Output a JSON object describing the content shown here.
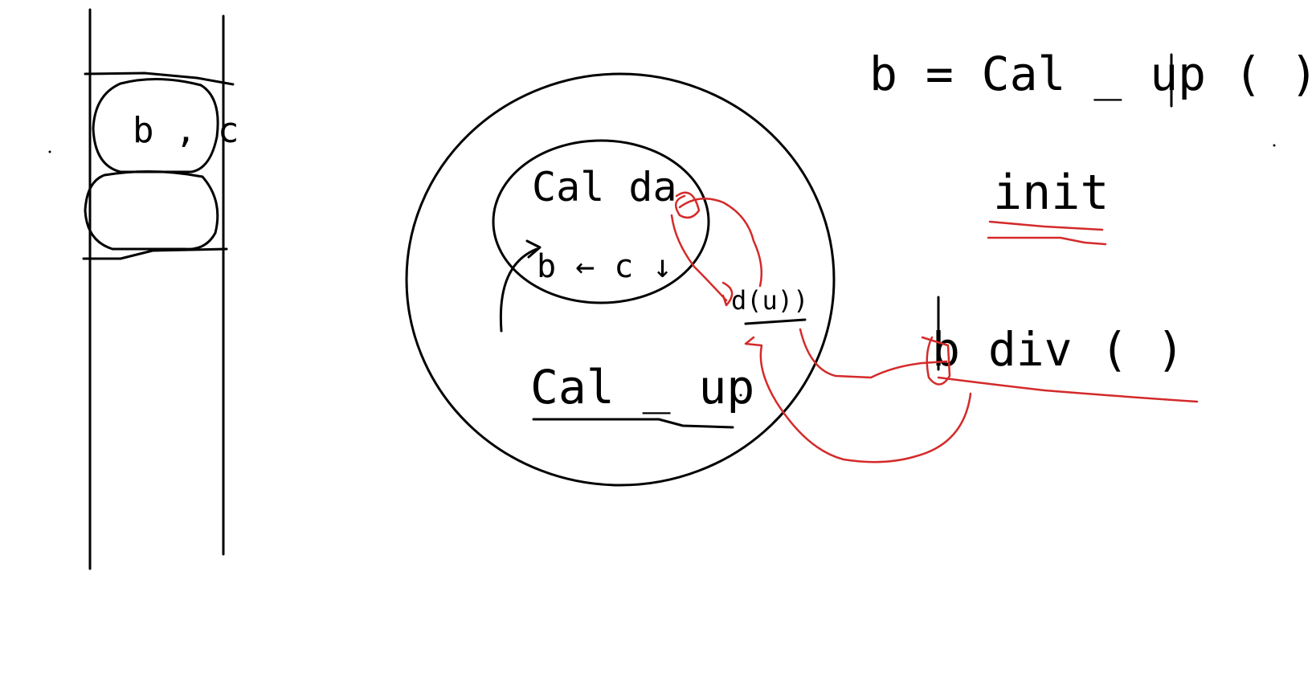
{
  "diagram": {
    "colors": {
      "ink": "#000000",
      "annotation": "#d42a2a",
      "background": "#ffffff"
    },
    "stack": {
      "top_slot_text": "b , c"
    },
    "scope_circle": {
      "inner_code_line1": "Cal  da",
      "inner_code_line2": "b ← c ↓",
      "outer_label": "Cal _ up",
      "call_label": "d(u))"
    },
    "right_code": {
      "line1": "b  = Cal _ up ( )",
      "line2": "init",
      "line3": "b  div ( )"
    }
  }
}
